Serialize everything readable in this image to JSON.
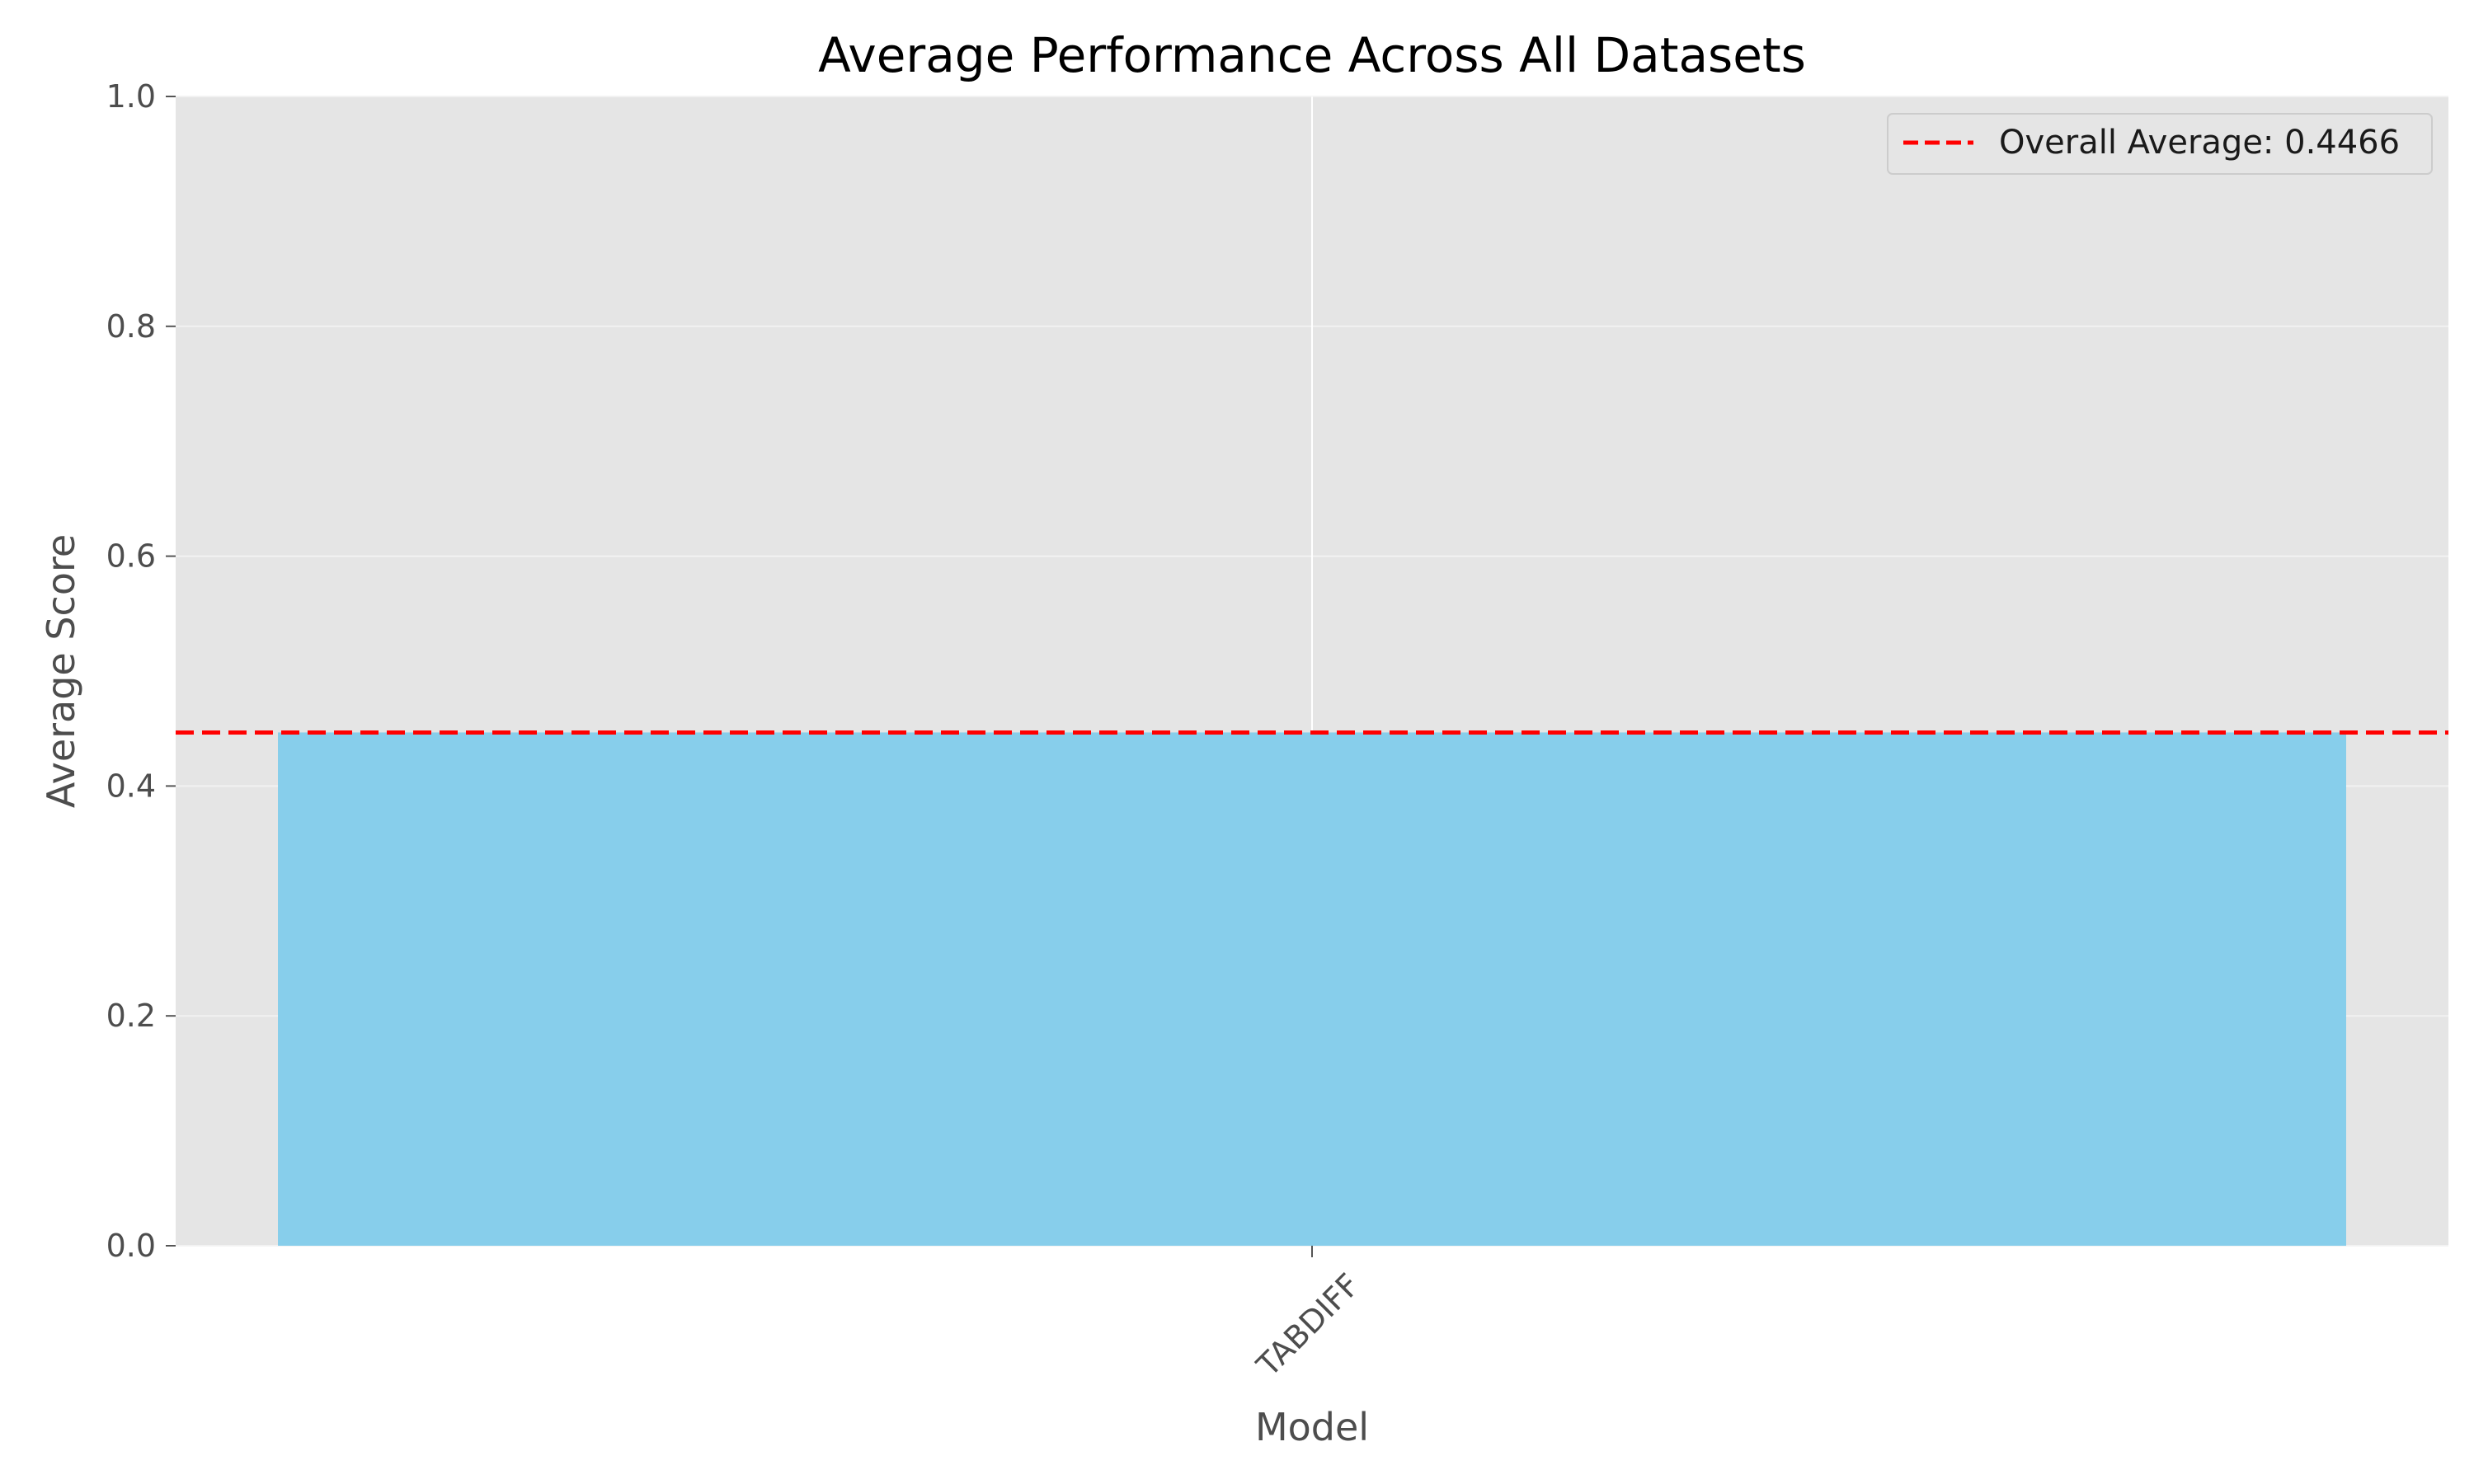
{
  "chart_data": {
    "type": "bar",
    "title": "Average Performance Across All Datasets",
    "xlabel": "Model",
    "ylabel": "Average Score",
    "categories": [
      "TABDIFF"
    ],
    "values": [
      0.4466
    ],
    "ylim": [
      0,
      1.0
    ],
    "yticks": [
      "0.0",
      "0.2",
      "0.4",
      "0.6",
      "0.8",
      "1.0"
    ],
    "bar_color": "#87CEEB",
    "grid": true,
    "reference_line": {
      "value": 0.4466,
      "label": "Overall Average: 0.4466",
      "color": "#ff0000",
      "style": "dashed"
    },
    "legend_position": "top-right",
    "plot_background": "#e5e5e5"
  }
}
